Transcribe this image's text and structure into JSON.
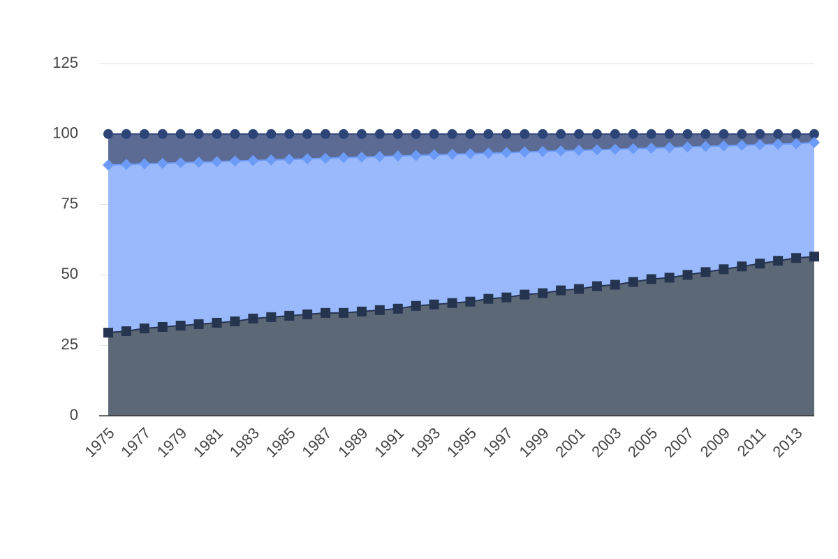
{
  "chart_data": {
    "type": "area",
    "categories": [
      "1975",
      null,
      "1977",
      null,
      "1979",
      null,
      "1981",
      null,
      "1983",
      null,
      "1985",
      null,
      "1987",
      null,
      "1989",
      null,
      "1991",
      null,
      "1993",
      null,
      "1995",
      null,
      "1997",
      null,
      "1999",
      null,
      "2001",
      null,
      "2003",
      null,
      "2005",
      null,
      "2007",
      null,
      "2009",
      null,
      "2011",
      null,
      "2013",
      null
    ],
    "series": [
      {
        "color": "#2d4477",
        "fill": "#5c6b93",
        "marker": "circle",
        "values": [
          100,
          100,
          100,
          100,
          100,
          100,
          100,
          100,
          100,
          100,
          100,
          100,
          100,
          100,
          100,
          100,
          100,
          100,
          100,
          100,
          100,
          100,
          100,
          100,
          100,
          100,
          100,
          100,
          100,
          100,
          100,
          100,
          100,
          100,
          100,
          100,
          100,
          100,
          100,
          100
        ]
      },
      {
        "color": "#6b9bf7",
        "fill": "#9ab9fd",
        "marker": "diamond",
        "values": [
          89,
          89.2,
          89.4,
          89.6,
          89.8,
          90,
          90.2,
          90.4,
          90.6,
          90.8,
          91,
          91.2,
          91.4,
          91.6,
          91.8,
          92,
          92.2,
          92.4,
          92.6,
          92.8,
          93,
          93.2,
          93.4,
          93.6,
          93.8,
          94,
          94.2,
          94.4,
          94.6,
          94.8,
          95,
          95.2,
          95.4,
          95.6,
          95.8,
          96,
          96.2,
          96.4,
          96.6,
          97
        ]
      },
      {
        "color": "#25344f",
        "fill": "#5d6877",
        "marker": "square",
        "values": [
          29.5,
          30,
          31,
          31.5,
          32,
          32.5,
          33,
          33.5,
          34.5,
          35,
          35.5,
          36,
          36.5,
          36.5,
          37,
          37.5,
          38,
          39,
          39.5,
          40,
          40.5,
          41.5,
          42,
          43,
          43.5,
          44.5,
          45,
          46,
          46.5,
          47.5,
          48.5,
          49,
          50,
          51,
          52,
          53,
          54,
          55,
          56,
          56.5
        ]
      }
    ],
    "ylim": [
      0,
      125
    ],
    "yticks": [
      0,
      25,
      50,
      75,
      100,
      125
    ],
    "grid": true
  }
}
